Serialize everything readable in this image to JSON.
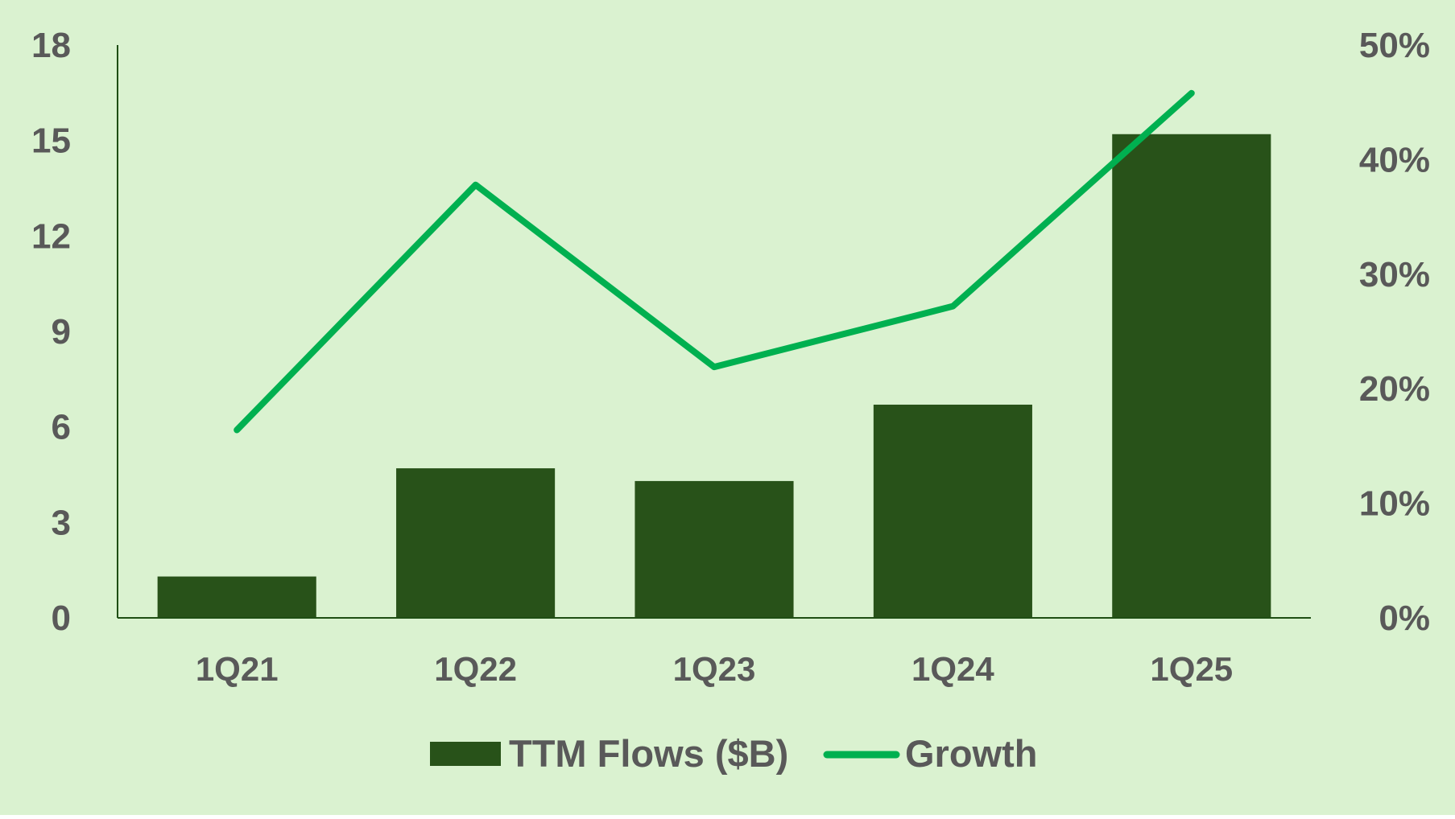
{
  "chart_data": {
    "type": "bar",
    "categories": [
      "1Q21",
      "1Q22",
      "1Q23",
      "1Q24",
      "1Q25"
    ],
    "series": [
      {
        "name": "TTM Flows ($B)",
        "type": "bar",
        "axis": "left",
        "values": [
          1.3,
          4.7,
          4.3,
          6.7,
          15.2
        ]
      },
      {
        "name": "Growth",
        "type": "line",
        "axis": "right",
        "values": [
          0.164,
          0.378,
          0.219,
          0.272,
          0.458
        ]
      }
    ],
    "y_left": {
      "ylim": [
        0,
        18
      ],
      "ticks": [
        0,
        3,
        6,
        9,
        12,
        15,
        18
      ],
      "tick_labels": [
        "0",
        "3",
        "6",
        "9",
        "12",
        "15",
        "18"
      ]
    },
    "y_right": {
      "ylim": [
        0,
        0.5
      ],
      "ticks": [
        0,
        0.1,
        0.2,
        0.3,
        0.4,
        0.5
      ],
      "tick_labels": [
        "0%",
        "10%",
        "20%",
        "30%",
        "40%",
        "50%"
      ]
    },
    "title": "",
    "xlabel": "",
    "ylabel": "",
    "grid": false,
    "legend": {
      "position": "bottom",
      "entries": [
        "TTM Flows ($B)",
        "Growth"
      ]
    },
    "colors": {
      "background": "#daf2d0",
      "bar": "#285219",
      "line": "#00b050",
      "axis": "#1f4e14",
      "text": "#595959"
    }
  }
}
